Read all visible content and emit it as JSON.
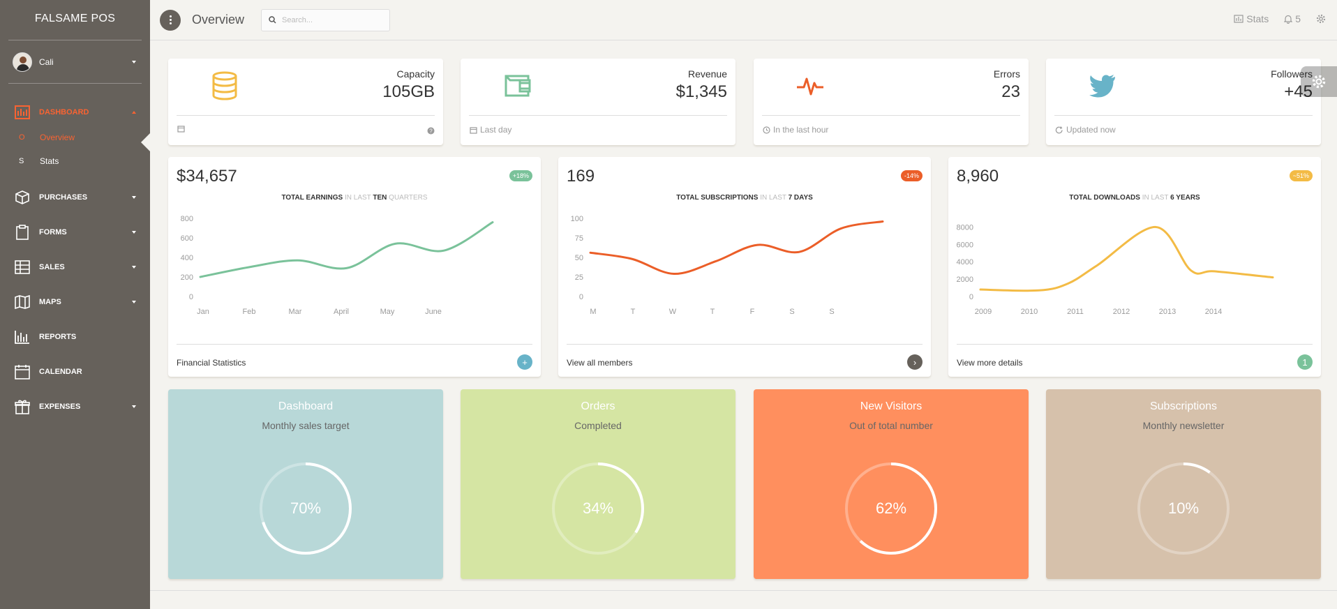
{
  "sidebar": {
    "brand": "FALSAME POS",
    "user_name": "Cali",
    "nav": [
      {
        "label": "DASHBOARD",
        "icon": "dashboard-chart-icon",
        "active": true
      },
      {
        "label": "PURCHASES",
        "icon": "box-icon"
      },
      {
        "label": "FORMS",
        "icon": "clipboard-icon"
      },
      {
        "label": "SALES",
        "icon": "table-icon"
      },
      {
        "label": "MAPS",
        "icon": "map-icon"
      },
      {
        "label": "REPORTS",
        "icon": "bar-chart-icon"
      },
      {
        "label": "CALENDAR",
        "icon": "calendar-icon"
      },
      {
        "label": "EXPENSES",
        "icon": "gift-icon"
      }
    ],
    "sub": [
      {
        "mini": "O",
        "label": "Overview",
        "active": true
      },
      {
        "mini": "S",
        "label": "Stats"
      }
    ]
  },
  "topbar": {
    "title": "Overview",
    "search_placeholder": "Search...",
    "stats_label": "Stats",
    "notifications_count": "5"
  },
  "stats": [
    {
      "label": "Capacity",
      "value": "105GB",
      "footer": "",
      "icon": "database-icon",
      "color": "#f3bb45"
    },
    {
      "label": "Revenue",
      "value": "$1,345",
      "footer": "Last day",
      "icon": "wallet-icon",
      "color": "#7ac29a"
    },
    {
      "label": "Errors",
      "value": "23",
      "footer": "In the last hour",
      "icon": "pulse-icon",
      "color": "#eb5e28"
    },
    {
      "label": "Followers",
      "value": "+45",
      "footer": "Updated now",
      "icon": "twitter-icon",
      "color": "#68b3c8"
    }
  ],
  "charts": [
    {
      "value": "$34,657",
      "badge": "+18%",
      "badge_color": "#7ac29a",
      "title": {
        "a": "TOTAL EARNINGS ",
        "b": "IN LAST ",
        "c": "TEN ",
        "d": "QUARTERS"
      },
      "footer": "View all members",
      "footer_label": "Financial Statistics",
      "button": "+",
      "button_color": "#68b3c8",
      "color": "#7ac29a"
    },
    {
      "value": "169",
      "badge": "-14%",
      "badge_color": "#eb5e28",
      "title": {
        "a": "TOTAL SUBSCRIPTIONS ",
        "b": "IN LAST ",
        "c": "7 DAYS",
        "d": ""
      },
      "footer_label": "View all members",
      "button": "›",
      "button_color": "#66615b",
      "color": "#eb5e28"
    },
    {
      "value": "8,960",
      "badge": "~51%",
      "badge_color": "#f3bb45",
      "title": {
        "a": "TOTAL DOWNLOADS ",
        "b": "IN LAST ",
        "c": "6 YEARS",
        "d": ""
      },
      "footer_label": "View more details",
      "button": "1",
      "button_color": "#7ac29a",
      "color": "#f3bb45"
    }
  ],
  "chart_data": [
    {
      "type": "line",
      "title": "TOTAL EARNINGS IN LAST TEN QUARTERS",
      "categories": [
        "Jan",
        "Feb",
        "Mar",
        "April",
        "May",
        "June"
      ],
      "x": [
        0,
        1,
        2,
        3,
        4,
        5,
        6
      ],
      "values": [
        200,
        300,
        370,
        290,
        540,
        470,
        760
      ],
      "yticks": [
        0,
        200,
        400,
        600,
        800
      ],
      "ylim": [
        0,
        800
      ],
      "color": "#7ac29a"
    },
    {
      "type": "line",
      "title": "TOTAL SUBSCRIPTIONS IN LAST 7 DAYS",
      "categories": [
        "M",
        "T",
        "W",
        "T",
        "F",
        "S",
        "S"
      ],
      "x": [
        0,
        1,
        2,
        3,
        4,
        5,
        6,
        7
      ],
      "values": [
        56,
        48,
        29,
        45,
        66,
        57,
        87,
        96
      ],
      "yticks": [
        0,
        25,
        50,
        75,
        100
      ],
      "ylim": [
        0,
        100
      ],
      "color": "#eb5e28"
    },
    {
      "type": "line",
      "title": "TOTAL DOWNLOADS IN LAST 6 YEARS",
      "categories": [
        "2009",
        "2010",
        "2011",
        "2012",
        "2013",
        "2014"
      ],
      "x": [
        0,
        1,
        1.5,
        2,
        3,
        3.6,
        4,
        5
      ],
      "values": [
        800,
        700,
        1500,
        3600,
        8000,
        3000,
        2900,
        2200
      ],
      "yticks": [
        0,
        2000,
        4000,
        6000,
        8000
      ],
      "ylim": [
        0,
        9000
      ],
      "color": "#f3bb45"
    }
  ],
  "cards": [
    {
      "title": "Dashboard",
      "subtitle": "Monthly sales target",
      "percent": 70,
      "label": "70%",
      "bg": "#b8d8d8"
    },
    {
      "title": "Orders",
      "subtitle": "Completed",
      "percent": 34,
      "label": "34%",
      "bg": "#d5e5a3"
    },
    {
      "title": "New Visitors",
      "subtitle": "Out of total number",
      "percent": 62,
      "label": "62%",
      "bg": "#ff8f5e"
    },
    {
      "title": "Subscriptions",
      "subtitle": "Monthly newsletter",
      "percent": 10,
      "label": "10%",
      "bg": "#d6c1ab"
    }
  ]
}
